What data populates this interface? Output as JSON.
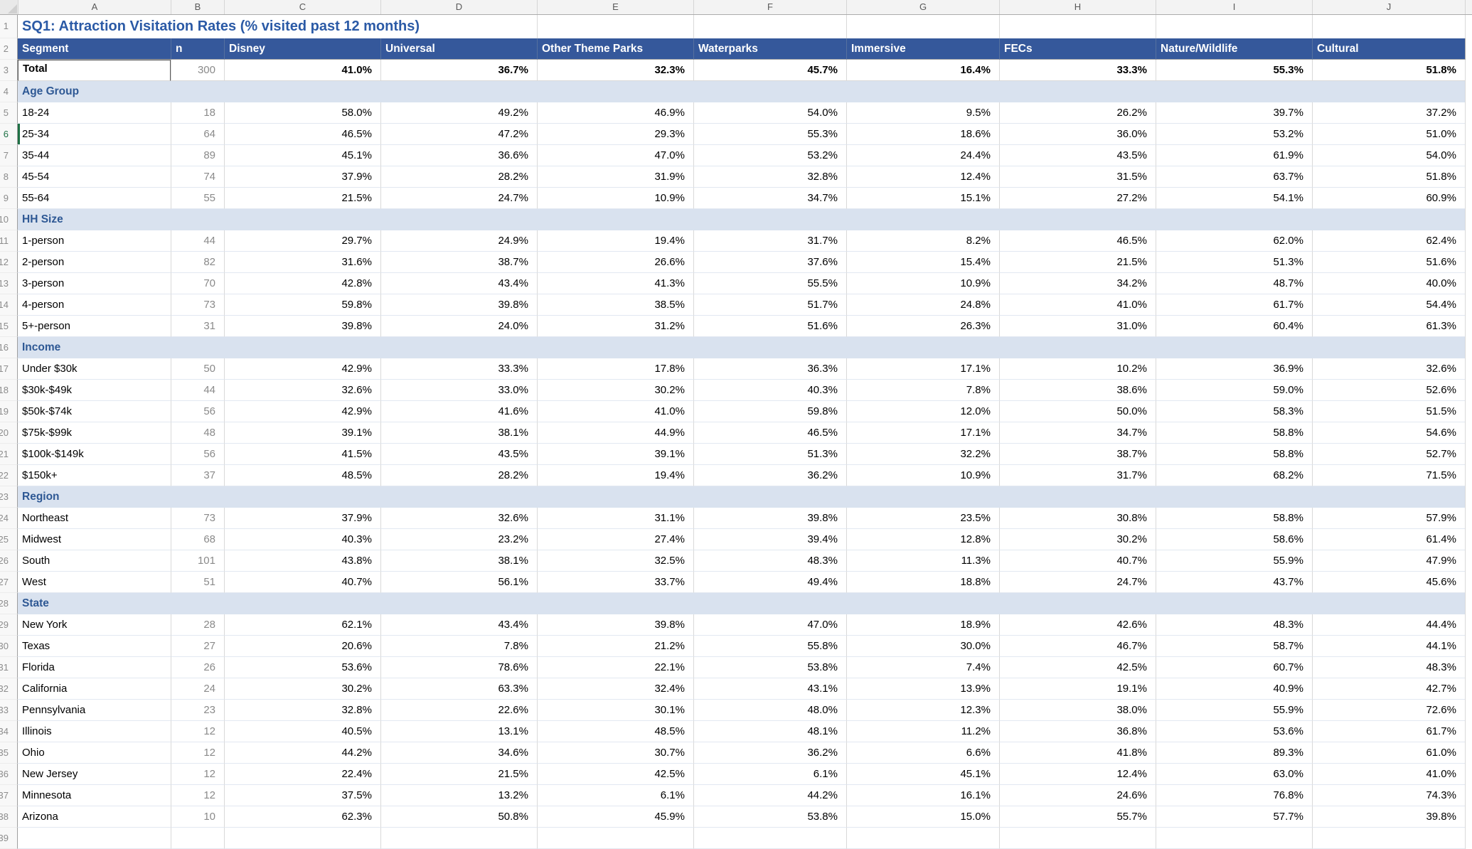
{
  "sheet": {
    "column_letters": [
      "A",
      "B",
      "C",
      "D",
      "E",
      "F",
      "G",
      "H",
      "I",
      "J"
    ],
    "title_row_number": 1,
    "header_row_number": 2,
    "active_cell": "A3",
    "marked_row": 6,
    "colors": {
      "header_fill": "#35589B",
      "title_text": "#2B5AA6",
      "section_text": "#2E5894",
      "section_band_fill": "#D9E2EF",
      "active_cell_border": "#2F5597",
      "marker_green": "#1E7145"
    }
  },
  "title": "SQ1: Attraction Visitation Rates (% visited past 12 months)",
  "table": {
    "columns": [
      "Segment",
      "n",
      "Disney",
      "Universal",
      "Other Theme Parks",
      "Waterparks",
      "Immersive",
      "FECs",
      "Nature/Wildlife",
      "Cultural"
    ],
    "rows": [
      {
        "row": 3,
        "type": "total",
        "label": "Total",
        "n": "300",
        "values": [
          "41.0%",
          "36.7%",
          "32.3%",
          "45.7%",
          "16.4%",
          "33.3%",
          "55.3%",
          "51.8%"
        ]
      },
      {
        "row": 4,
        "type": "section",
        "label": "Age Group"
      },
      {
        "row": 5,
        "type": "data",
        "label": "18-24",
        "n": "18",
        "values": [
          "58.0%",
          "49.2%",
          "46.9%",
          "54.0%",
          "9.5%",
          "26.2%",
          "39.7%",
          "37.2%"
        ]
      },
      {
        "row": 6,
        "type": "data",
        "label": "25-34",
        "n": "64",
        "values": [
          "46.5%",
          "47.2%",
          "29.3%",
          "55.3%",
          "18.6%",
          "36.0%",
          "53.2%",
          "51.0%"
        ]
      },
      {
        "row": 7,
        "type": "data",
        "label": "35-44",
        "n": "89",
        "values": [
          "45.1%",
          "36.6%",
          "47.0%",
          "53.2%",
          "24.4%",
          "43.5%",
          "61.9%",
          "54.0%"
        ]
      },
      {
        "row": 8,
        "type": "data",
        "label": "45-54",
        "n": "74",
        "values": [
          "37.9%",
          "28.2%",
          "31.9%",
          "32.8%",
          "12.4%",
          "31.5%",
          "63.7%",
          "51.8%"
        ]
      },
      {
        "row": 9,
        "type": "data",
        "label": "55-64",
        "n": "55",
        "values": [
          "21.5%",
          "24.7%",
          "10.9%",
          "34.7%",
          "15.1%",
          "27.2%",
          "54.1%",
          "60.9%"
        ]
      },
      {
        "row": 10,
        "type": "section",
        "label": "HH Size"
      },
      {
        "row": 11,
        "type": "data",
        "label": "1-person",
        "n": "44",
        "values": [
          "29.7%",
          "24.9%",
          "19.4%",
          "31.7%",
          "8.2%",
          "46.5%",
          "62.0%",
          "62.4%"
        ]
      },
      {
        "row": 12,
        "type": "data",
        "label": "2-person",
        "n": "82",
        "values": [
          "31.6%",
          "38.7%",
          "26.6%",
          "37.6%",
          "15.4%",
          "21.5%",
          "51.3%",
          "51.6%"
        ]
      },
      {
        "row": 13,
        "type": "data",
        "label": "3-person",
        "n": "70",
        "values": [
          "42.8%",
          "43.4%",
          "41.3%",
          "55.5%",
          "10.9%",
          "34.2%",
          "48.7%",
          "40.0%"
        ]
      },
      {
        "row": 14,
        "type": "data",
        "label": "4-person",
        "n": "73",
        "values": [
          "59.8%",
          "39.8%",
          "38.5%",
          "51.7%",
          "24.8%",
          "41.0%",
          "61.7%",
          "54.4%"
        ]
      },
      {
        "row": 15,
        "type": "data",
        "label": "5+-person",
        "n": "31",
        "values": [
          "39.8%",
          "24.0%",
          "31.2%",
          "51.6%",
          "26.3%",
          "31.0%",
          "60.4%",
          "61.3%"
        ]
      },
      {
        "row": 16,
        "type": "section",
        "label": "Income"
      },
      {
        "row": 17,
        "type": "data",
        "label": "Under $30k",
        "n": "50",
        "values": [
          "42.9%",
          "33.3%",
          "17.8%",
          "36.3%",
          "17.1%",
          "10.2%",
          "36.9%",
          "32.6%"
        ]
      },
      {
        "row": 18,
        "type": "data",
        "label": "$30k-$49k",
        "n": "44",
        "values": [
          "32.6%",
          "33.0%",
          "30.2%",
          "40.3%",
          "7.8%",
          "38.6%",
          "59.0%",
          "52.6%"
        ]
      },
      {
        "row": 19,
        "type": "data",
        "label": "$50k-$74k",
        "n": "56",
        "values": [
          "42.9%",
          "41.6%",
          "41.0%",
          "59.8%",
          "12.0%",
          "50.0%",
          "58.3%",
          "51.5%"
        ]
      },
      {
        "row": 20,
        "type": "data",
        "label": "$75k-$99k",
        "n": "48",
        "values": [
          "39.1%",
          "38.1%",
          "44.9%",
          "46.5%",
          "17.1%",
          "34.7%",
          "58.8%",
          "54.6%"
        ]
      },
      {
        "row": 21,
        "type": "data",
        "label": "$100k-$149k",
        "n": "56",
        "values": [
          "41.5%",
          "43.5%",
          "39.1%",
          "51.3%",
          "32.2%",
          "38.7%",
          "58.8%",
          "52.7%"
        ]
      },
      {
        "row": 22,
        "type": "data",
        "label": "$150k+",
        "n": "37",
        "values": [
          "48.5%",
          "28.2%",
          "19.4%",
          "36.2%",
          "10.9%",
          "31.7%",
          "68.2%",
          "71.5%"
        ]
      },
      {
        "row": 23,
        "type": "section",
        "label": "Region"
      },
      {
        "row": 24,
        "type": "data",
        "label": "Northeast",
        "n": "73",
        "values": [
          "37.9%",
          "32.6%",
          "31.1%",
          "39.8%",
          "23.5%",
          "30.8%",
          "58.8%",
          "57.9%"
        ]
      },
      {
        "row": 25,
        "type": "data",
        "label": "Midwest",
        "n": "68",
        "values": [
          "40.3%",
          "23.2%",
          "27.4%",
          "39.4%",
          "12.8%",
          "30.2%",
          "58.6%",
          "61.4%"
        ]
      },
      {
        "row": 26,
        "type": "data",
        "label": "South",
        "n": "101",
        "values": [
          "43.8%",
          "38.1%",
          "32.5%",
          "48.3%",
          "11.3%",
          "40.7%",
          "55.9%",
          "47.9%"
        ]
      },
      {
        "row": 27,
        "type": "data",
        "label": "West",
        "n": "51",
        "values": [
          "40.7%",
          "56.1%",
          "33.7%",
          "49.4%",
          "18.8%",
          "24.7%",
          "43.7%",
          "45.6%"
        ]
      },
      {
        "row": 28,
        "type": "section",
        "label": "State"
      },
      {
        "row": 29,
        "type": "data",
        "label": "New York",
        "n": "28",
        "values": [
          "62.1%",
          "43.4%",
          "39.8%",
          "47.0%",
          "18.9%",
          "42.6%",
          "48.3%",
          "44.4%"
        ]
      },
      {
        "row": 30,
        "type": "data",
        "label": "Texas",
        "n": "27",
        "values": [
          "20.6%",
          "7.8%",
          "21.2%",
          "55.8%",
          "30.0%",
          "46.7%",
          "58.7%",
          "44.1%"
        ]
      },
      {
        "row": 31,
        "type": "data",
        "label": "Florida",
        "n": "26",
        "values": [
          "53.6%",
          "78.6%",
          "22.1%",
          "53.8%",
          "7.4%",
          "42.5%",
          "60.7%",
          "48.3%"
        ]
      },
      {
        "row": 32,
        "type": "data",
        "label": "California",
        "n": "24",
        "values": [
          "30.2%",
          "63.3%",
          "32.4%",
          "43.1%",
          "13.9%",
          "19.1%",
          "40.9%",
          "42.7%"
        ]
      },
      {
        "row": 33,
        "type": "data",
        "label": "Pennsylvania",
        "n": "23",
        "values": [
          "32.8%",
          "22.6%",
          "30.1%",
          "48.0%",
          "12.3%",
          "38.0%",
          "55.9%",
          "72.6%"
        ]
      },
      {
        "row": 34,
        "type": "data",
        "label": "Illinois",
        "n": "12",
        "values": [
          "40.5%",
          "13.1%",
          "48.5%",
          "48.1%",
          "11.2%",
          "36.8%",
          "53.6%",
          "61.7%"
        ]
      },
      {
        "row": 35,
        "type": "data",
        "label": "Ohio",
        "n": "12",
        "values": [
          "44.2%",
          "34.6%",
          "30.7%",
          "36.2%",
          "6.6%",
          "41.8%",
          "89.3%",
          "61.0%"
        ]
      },
      {
        "row": 36,
        "type": "data",
        "label": "New Jersey",
        "n": "12",
        "values": [
          "22.4%",
          "21.5%",
          "42.5%",
          "6.1%",
          "45.1%",
          "12.4%",
          "63.0%",
          "41.0%"
        ]
      },
      {
        "row": 37,
        "type": "data",
        "label": "Minnesota",
        "n": "12",
        "values": [
          "37.5%",
          "13.2%",
          "6.1%",
          "44.2%",
          "16.1%",
          "24.6%",
          "76.8%",
          "74.3%"
        ]
      },
      {
        "row": 38,
        "type": "data",
        "label": "Arizona",
        "n": "10",
        "values": [
          "62.3%",
          "50.8%",
          "45.9%",
          "53.8%",
          "15.0%",
          "55.7%",
          "57.7%",
          "39.8%"
        ]
      },
      {
        "row": 39,
        "type": "empty"
      }
    ]
  }
}
